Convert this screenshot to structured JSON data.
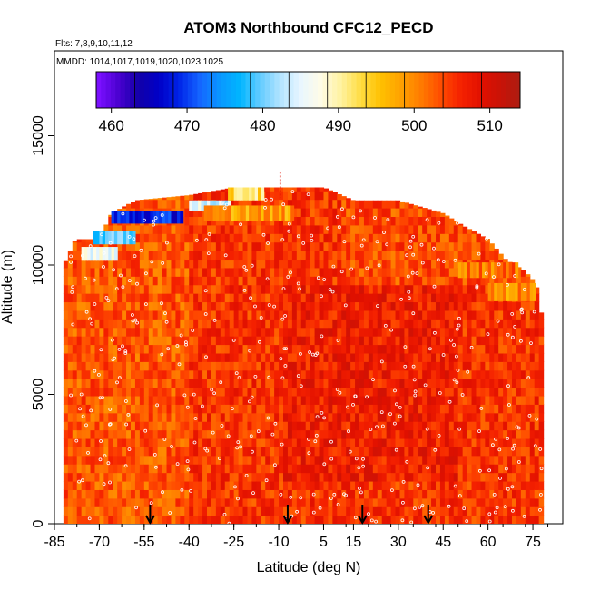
{
  "chart_data": {
    "type": "heatmap",
    "title": "ATOM3 Northbound CFC12_PECD",
    "subtitle_flights": "Flts: 7,8,9,10,11,12",
    "subtitle_dates": "MMDD: 1014,1017,1019,1020,1023,1025",
    "xlabel": "Latitude (deg N)",
    "ylabel": "Altitude (m)",
    "xlim": [
      -85,
      85
    ],
    "ylim": [
      0,
      18000
    ],
    "x_ticks": [
      -85,
      -70,
      -55,
      -40,
      -25,
      -10,
      5,
      15,
      30,
      45,
      60,
      75
    ],
    "x_tick_labels": [
      "-85",
      "-70",
      "-55",
      "-40",
      "-25",
      "-10",
      "5",
      "15",
      "30",
      "45",
      "60",
      "75"
    ],
    "y_ticks": [
      0,
      5000,
      10000,
      15000
    ],
    "y_tick_labels": [
      "0",
      "5000",
      "10000",
      "15000"
    ],
    "colorbar": {
      "min": 458,
      "max": 514,
      "ticks": [
        460,
        470,
        480,
        490,
        500,
        510
      ],
      "tick_labels": [
        "460",
        "470",
        "480",
        "490",
        "500",
        "510"
      ],
      "colors": [
        "#7b10ff",
        "#4a00d0",
        "#1200a8",
        "#0000c8",
        "#0024e8",
        "#1464ff",
        "#0a96ff",
        "#00b6ff",
        "#64ccff",
        "#b4e4ff",
        "#e8f6ff",
        "#fffce6",
        "#fff2a0",
        "#ffdc40",
        "#ffc000",
        "#ffa000",
        "#ff7a00",
        "#ff4a00",
        "#f42000",
        "#e01000",
        "#c61408",
        "#a81e14"
      ]
    },
    "profile_top_altitude": [
      [
        -82,
        10000
      ],
      [
        -78,
        11000
      ],
      [
        -70,
        11000
      ],
      [
        -66,
        12000
      ],
      [
        -58,
        12500
      ],
      [
        -40,
        12700
      ],
      [
        -25,
        13000
      ],
      [
        -15,
        13000
      ],
      [
        -5,
        13000
      ],
      [
        5,
        13000
      ],
      [
        15,
        12500
      ],
      [
        30,
        12500
      ],
      [
        45,
        12000
      ],
      [
        52,
        11500
      ],
      [
        60,
        11000
      ],
      [
        66,
        10200
      ],
      [
        72,
        9800
      ],
      [
        76,
        9300
      ],
      [
        78,
        8000
      ],
      [
        79,
        5000
      ]
    ],
    "field_base_value": 505,
    "high_altitude_anomalies": [
      {
        "lat_range": [
          -66,
          -42
        ],
        "alt_range": [
          11600,
          12100
        ],
        "value": 468
      },
      {
        "lat_range": [
          -72,
          -58
        ],
        "alt_range": [
          10800,
          11300
        ],
        "value": 478
      },
      {
        "lat_range": [
          -76,
          -64
        ],
        "alt_range": [
          10200,
          10700
        ],
        "value": 487
      },
      {
        "lat_range": [
          -40,
          -26
        ],
        "alt_range": [
          12100,
          12500
        ],
        "value": 484
      },
      {
        "lat_range": [
          -27,
          -15
        ],
        "alt_range": [
          12500,
          13000
        ],
        "value": 492
      },
      {
        "lat_range": [
          -35,
          -5
        ],
        "alt_range": [
          11700,
          12300
        ],
        "value": 498
      },
      {
        "lat_range": [
          60,
          76
        ],
        "alt_range": [
          8600,
          9300
        ],
        "value": 499
      },
      {
        "lat_range": [
          50,
          70
        ],
        "alt_range": [
          9500,
          10100
        ],
        "value": 501
      }
    ],
    "arrow_latitudes": [
      -53,
      -7,
      18,
      40
    ]
  }
}
